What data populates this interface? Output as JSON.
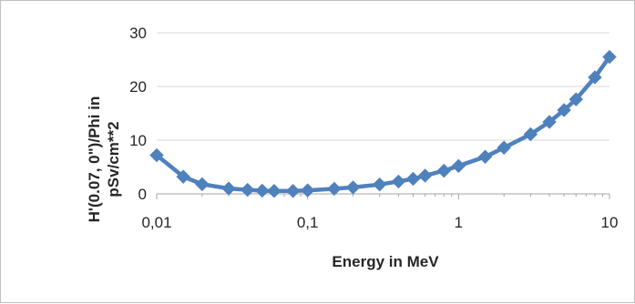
{
  "chart_data": {
    "type": "scatter",
    "title": "",
    "xlabel": "Energy in MeV",
    "ylabel_lines": [
      "H'(0.07, 0\")/Phi in",
      "pSv/cm**2"
    ],
    "x_scale": "log",
    "xlim": [
      0.01,
      10
    ],
    "ylim": [
      0,
      30
    ],
    "x_ticks": [
      0.01,
      0.1,
      1,
      10
    ],
    "x_tick_labels": [
      "0,01",
      "0,1",
      "1",
      "10"
    ],
    "y_ticks": [
      0,
      10,
      20,
      30
    ],
    "y_tick_labels": [
      "0",
      "10",
      "20",
      "30"
    ],
    "grid": "horizontal",
    "legend": "none",
    "series": [
      {
        "color": "#4f81bd",
        "marker": "diamond",
        "line": "straight",
        "x": [
          0.01,
          0.015,
          0.02,
          0.03,
          0.04,
          0.05,
          0.06,
          0.08,
          0.1,
          0.15,
          0.2,
          0.3,
          0.4,
          0.5,
          0.6,
          0.8,
          1,
          1.5,
          2,
          3,
          4,
          5,
          6,
          8,
          10
        ],
        "y": [
          7.2,
          3.2,
          1.8,
          1.0,
          0.75,
          0.6,
          0.55,
          0.55,
          0.65,
          0.95,
          1.2,
          1.75,
          2.3,
          2.8,
          3.4,
          4.3,
          5.2,
          6.9,
          8.6,
          11.1,
          13.4,
          15.6,
          17.6,
          21.7,
          25.5
        ]
      }
    ]
  }
}
